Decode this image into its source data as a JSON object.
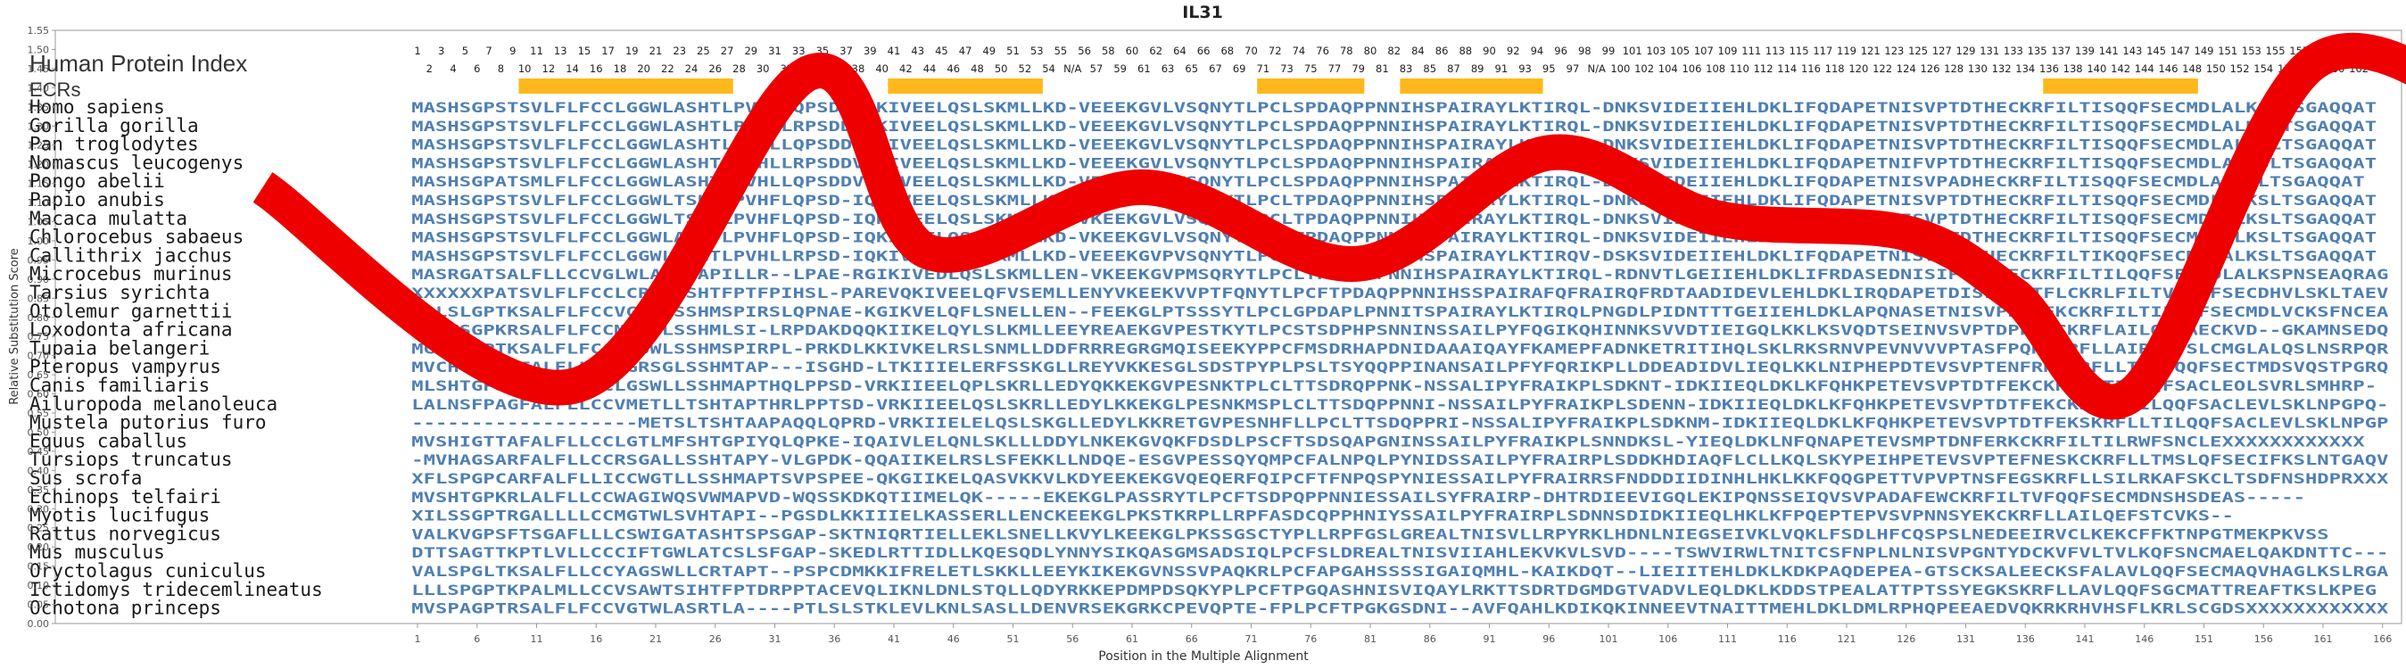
{
  "chart_data": {
    "type": "line",
    "title": "IL31",
    "xlabel": "Position in the Multiple Alignment",
    "ylabel": "Relative Substitution Score",
    "ylim": [
      0.0,
      1.55
    ],
    "y_ticks": [
      "0.00",
      "0.05",
      "0.10",
      "0.15",
      "0.20",
      "0.25",
      "0.30",
      "0.35",
      "0.40",
      "0.45",
      "0.50",
      "0.55",
      "0.60",
      "0.65",
      "0.70",
      "0.75",
      "0.80",
      "0.85",
      "0.90",
      "0.95",
      "1.00",
      "1.05",
      "1.10",
      "1.15",
      "1.20",
      "1.25",
      "1.30",
      "1.35",
      "1.40",
      "1.45",
      "1.50",
      "1.55"
    ],
    "xlim": [
      1,
      166
    ],
    "x_ticks": [
      "1",
      "6",
      "11",
      "16",
      "21",
      "26",
      "31",
      "36",
      "41",
      "46",
      "51",
      "56",
      "61",
      "66",
      "71",
      "76",
      "81",
      "86",
      "91",
      "96",
      "101",
      "106",
      "111",
      "116",
      "121",
      "126",
      "131",
      "136",
      "141",
      "146",
      "151",
      "156",
      "161",
      "166"
    ],
    "index_label": "Human Protein Index",
    "ecr_label": "ECRs",
    "human_index_row1": [
      "1",
      "3",
      "5",
      "7",
      "9",
      "11",
      "13",
      "15",
      "17",
      "19",
      "21",
      "23",
      "25",
      "27",
      "29",
      "31",
      "33",
      "35",
      "37",
      "39",
      "41",
      "43",
      "45",
      "47",
      "49",
      "51",
      "53",
      "55",
      "56",
      "58",
      "60",
      "62",
      "64",
      "66",
      "68",
      "70",
      "72",
      "74",
      "76",
      "78",
      "80",
      "82",
      "84",
      "86",
      "88",
      "90",
      "92",
      "94",
      "96",
      "98",
      "99",
      "101",
      "103",
      "105",
      "107",
      "109",
      "111",
      "113",
      "115",
      "117",
      "119",
      "121",
      "123",
      "125",
      "127",
      "129",
      "131",
      "133",
      "135",
      "137",
      "139",
      "141",
      "143",
      "145",
      "147",
      "149",
      "151",
      "153",
      "155",
      "157",
      "159",
      "161",
      "163"
    ],
    "human_index_row2": [
      "2",
      "4",
      "6",
      "8",
      "10",
      "12",
      "14",
      "16",
      "18",
      "20",
      "22",
      "24",
      "26",
      "28",
      "30",
      "32",
      "34",
      "36",
      "38",
      "40",
      "42",
      "44",
      "46",
      "48",
      "50",
      "52",
      "54",
      "N/A",
      "57",
      "59",
      "61",
      "63",
      "65",
      "67",
      "69",
      "71",
      "73",
      "75",
      "77",
      "79",
      "81",
      "83",
      "85",
      "87",
      "89",
      "91",
      "93",
      "95",
      "97",
      "N/A",
      "100",
      "102",
      "104",
      "106",
      "108",
      "110",
      "112",
      "114",
      "116",
      "118",
      "120",
      "122",
      "124",
      "126",
      "128",
      "130",
      "132",
      "134",
      "136",
      "138",
      "140",
      "142",
      "144",
      "146",
      "148",
      "150",
      "152",
      "154",
      "156",
      "158",
      "160",
      "162"
    ],
    "ecrs": [
      [
        10,
        27
      ],
      [
        41,
        53
      ],
      [
        72,
        80
      ],
      [
        84,
        95
      ],
      [
        138,
        150
      ]
    ],
    "species": [
      "Homo sapiens",
      "Gorilla gorilla",
      "Pan troglodytes",
      "Nomascus leucogenys",
      "Pongo abelii",
      "Papio anubis",
      "Macaca mulatta",
      "Chlorocebus sabaeus",
      "Callithrix jacchus",
      "Microcebus murinus",
      "Tarsius syrichta",
      "Otolemur garnettii",
      "Loxodonta africana",
      "Tupaia belangeri",
      "Pteropus vampyrus",
      "Canis familiaris",
      "Ailuropoda melanoleuca",
      "Mustela putorius furo",
      "Equus caballus",
      "Tursiops truncatus",
      "Sus scrofa",
      "Echinops telfairi",
      "Myotis lucifugus",
      "Rattus norvegicus",
      "Mus musculus",
      "Oryctolagus cuniculus",
      "Ictidomys tridecemlineatus",
      "Ochotona princeps"
    ],
    "sequences": [
      "MASHSGPSTSVLFLFCCLGGWLASHTLPVHLLQPSDDVQKIVEELQSLSKMLLKD-VEEEKGVLVSQNYTLPCLSPDAQPPNNIHSPAIRAYLKTIRQL-DNKSVIDEIIEHLDKLIFQDAPETNISVPTDTHECKRFILTISQQFSECMDLALKSLTSGAQQAT",
      "MASHSGPSTSVLFLFCCLGGWLASHTLPILLLRPSDDVQKIVEELQSLSKMLLKD-VEEEKGVLVSQNYTLPCLSPDAQPPNNIHSPAIRAYLKTIRQL-DNKSVIDEIIEHLDKLIFQDAPETNISVPTDTHECKRFILTISQQFSECMDLALKSLTSGAQQAT",
      "MASHSGPSTSVLFLFCCLGGWLASHTLPVHLLQPSDDVQKIVEELQSLSKMLLKD-VEEEKGVLVSQNYTLPCLSPDAQPPNNIHSPAIRAYLKTIRQL-DNKSVIDEIIEHLDKLIFQDAPETNISVPTDTHECKRFILTISQQFSECMDLALKSLTSGAQQAT",
      "MASHSGPSTSVLFLFCCLGGWLASHTLPVHLLRPSDDVQKIVEELQSLSKMLLKD-VEEEKGVLVSQNYTLPCLSPDAQPPNNIHSPAIRAYLKTIRQL-DNKSVIDEIIEHLDKLIFQDAPETNIFVPTDTHECKRFILTISQQFSECMDLALKSLTSGAQQAT",
      "MASHSGPATSMLFLFCCLGGWLASHTLPVHLLQPSDDVQKIVEELQSLSKMLLKD-VEEEKGVLVSQNYTLPCLSPDAQPPNNIHSPAIRAYLKTIRQL-DNKSVIDEIIEHLDKLIFQDAPETNISVPADHECKRFILTISQQFSECMDLALKSLTSGAQQAT",
      "MASHSGPSTSVLFLFCCLGGWLTSHTLPVHFLQPSD-IQKIVEELQSLSKMLLKD-VKEEKGVLVSQNYTLPCLTPDAQPPNNIHSPAIRAYLKTIRQL-DNKSVIDEIIEHLDKLIFQDAPETNISVPTDTHECKRFILTISQQFSECMDLALKSLTSGAQQAT",
      "MASHSGPSTSVLFLFCCLGGWLTSHTLPVHFLQPSD-IQKIVEELQSLSKMLLKD-VKEEKGVLVSQNYTLPCLTPDAQPPNNIHSPAIRAYLKTIRQL-DNKSVIDEIIEHLDKLIFQDAPETNISVPTDTHECKRFILTISQQFSECMDLALKSLTSGAQQAT",
      "MASHSGPSTSVLFLFCCLGGWLASHTLPVHFLQPSD-IQKIVEELQSLSKMLLKD-VKEEKGVLVSQNYTLPCLTPDAQPPNNIHSPAIRAYLKTIRQL-DNKSVIDEIIEHLDKLIFQDAPETNISVPTDTHECKRFILTISQQFSECMDLALKSLTSGAQQAT",
      "MASHSGPSTSVLFLFCCLGGWLASHTLPVHLLRPSD-IQKIVEELQSLSKMLLKD-VEEEKGVPVSQNYTLPCLSPDAQPPNSIHSPAIRAYLKTIRQV-DSKSVIDEIIEHLDKLIFQDAPETNISVPADTHECKRFILTIKQQFSECMDLALKSLTSGAQQAT",
      "MASRGATSALFLLCCVGLWLASHSAPILLR--LPAE-RGIKIVEDLQSLSKMLLEN-VKEEKGVPMSQRYTLPCLTPDAQPPNNIHSPAIRAYLKTIRQL-RDNVTLGEIIEHLDKLIFRDASEDNISIPTDTHECKRFILTILQQFSECLDLALKSPNSEAQRAG",
      "XXXXXXPATSVLFLFCCLCRSWLSHTFPTFPIHSL-PAREVQKIVEELQFVSEMLLENYVKEEKVVPTFQNYTLPCFTPDAQPPNNIHSSPAIRAFQFRAIRQFRDTAADIDEVLEHLDKLIRQDAPETDISLPTDTFLCKRLFILTVFQQFSECDHVLSKLTAEVGGI-",
      "AALSLGPTKSALFLFCCVGSWLSSHMSPIRSLQPNAE-KGIKVELQFLSNELLEN--FEEKGLPTSSSYTLPCLGPDAPLPNNITSPAIRAYLKTIRQLPNGDLPIDNTTTGEIIEHLDKLAPQNASETNISVPEAFEKCKRFILTILRQFSECMDLVCKSFNCEAQQAT",
      "MVSHSGPKRSALFLFCCMGNWLSSHMLSI-LRPDAKDQQKIIKELQYLSLKMLLEEYREAEKGVPESTKYTLPCSTSDPHPSNNINSSAILPYFQGIKQHINNKSVVDTIEIGQLKKLKSVQDTSEINVSVPTDPFEKCKRFLAILQQFAECKVD--GKAMNSEDQKAR",
      "MGSRTGPTKSALFLFCCLGSWLSSHMSPIRPL-PRKDLKKIVKELRSLSNMLLDDFRRREGRGMQISEEKYPPCFMSDRHAPDNIDAAAIQAYFKAMEPFADNKETRITIHQLSKLRKSRNVPEVNVVVPTASFPQKSKRFLLAIRQTFSLCMGLALQSLNSRPQRAA",
      "MVCHTGSARFALFLLCCLGRSGLSSHMTAP---ISGHD-LTKIIIELERFSSKGLLREYVKKESGLSDSTPYPLPSLTSYQQPPINANSAILPFYFQRIKPLLDDEADIDVLIEQLKKLNIPHEPDTEVSVPTENFRKCKRFLLTILCQQFSECTMDSVQSTPGRQRASC-",
      "MLSHTGPSRFALFLLCCLGSWLLSSHMAPTHQLPPSD-VRKIIEELQPLSKRLLEDYQKKEKGVPESNKTPLCLTTSDRQPPNK-NSSALIPYFRAIKPLSDKNT-IDKIIEQLDKLKFQHKPETEVSVPTDTFEKCKRFLLTILQQFSACLEOLSVRLSMHRP-",
      "LALNSFPAGFALFLLCCVMETLLTSHTAPTHRLPPTSD-VRKIIEELQSLSKRLLEDYLKKEKGLPESNKMSPLCLTTSDQPPNNI-NSSAILPYFRAIKPLSDENN-IDKIIEQLDKLKFQHKPETEVSVPTDTFEKCKRFLLTILQQFSACLEVLSKLNPGPQ--",
      "-------------------METSLTSHTAAPAQQLQPRD-VRKIIELELQSLSKGLLEDYLKKRETGVPESNHFLLPCLTTSDQPPRI-NSSALIPYFRAIKPLSDKNM-IDKIIEQLDKLKFQHKPETEVSVPTDTFEKSKRFLLTILQQFSACLEVLSKLNPGPQ--",
      "MVSHIGTTAFALFLLCCLGTLMFSHTGPIYQLQPKE-IQAIVLELQNLSKLLLDDYLNKEKGVQKFDSDLPSCFTSDSQAPGNINSSAILPYFRAIKPLSNNDKSL-YIEQLDKLNFQNAPETEVSMPTDNFERKCKRFILTILRWFSNCLEXXXXXXXXXXXX",
      "-MVHAGSARFALFLLCCRSGALLSSHTAPY-VLGPDK-QQAIIKELRSLSFEKKLLNDQE-ESGVPESSQYQMPCFALNPQLPYNIDSSAILPYFRAIRPLSDDKHDIAQFLCLLKQLSKYPEIHPETEVSVPTEFNESKCKRFLLTMSLQFSECIFKSLNTGAQVI--",
      "XFLSPGPCARFALFLLICCWGTLLSSHMAPTSVPSPEE-QKGIIKELQASVKKVLKDYEEKEKGVQEQERFQIPCFTFNPQSPYNIESSAILPYFRAIRRSFNDDDIIDINHLHKLKKFQQGPETTVPVPTNSFEGSKRFLLSILRKAFSKCLTSDFNSHDPRXXXXX",
      "MVSHTGPKRLALFLLCCWAGIWQSVWMAPVD-WQSSKDKQTIIMELQK-----EKEKGLPASSRYTLPCFTSDPQPPNNIESSAILSYFRAIRP-DHTRDIEEVIGQLEKIPQNSSEIQVSVPADAFEWCKRFILTVFQQFSECMDNSHSDEAS-----",
      "XILSSGPTRGALLLLCCMGTWLSVHTAPI--PGSDLKKIIIELKASSERLLENCKEEKGLPKSTKRPLLRPFASDCQPPHNIYSSAILPYFRAIRPLSDNNSDIDKIIEQLHKLKFPQEPTEPVSVPNNSYEKCKRFLLAILQEFSTCVKS--",
      "VALKVGPSFTSGAFLLLCSWIGATASHTSPSGAP-SKTNIQRTIELLEKLSNELLKVYLKEEKGLPKSSGSCTYPLLRPFGSLGREALTNISVLLRPYRKLHDNLNIEGSEIVKLVQKLFSDLHFCQSPSLNEDEEIRVCLKEKCFFKTNPGTMEKPKVSS",
      "DTTSAGTTKPTLVLLCCCIFTGWLATCSLSFGAP-SKEDLRTTIDLLKQESQDLYNNYSIKQASGMSADSIQLPCFSLDREALTNISVIIAHLEKVKVLSVD----TSWVIRWLTNITCSFNPLNLNISVPGNTYDCKVFVLTVLKQFSNCMAELQAKDNTTC---",
      "VALSPGLTKSALFLLCCYAGSWLLCRTAPT--PSPCDMKKIFRELETLSKKLLEEYKIKEKGVNSSVPAQKRLPCFAPGAHSSSSIGAIQMHL-KAIKDQT--LIEIITEHLDKLKDKPAQDEPEA-GTSCKSALEECKSFALAVLQQFSECMAQVHAGLKSLRGAIRCE",
      "LLLSPGPTKPALMLLCCVSAWTSIHTFPTDRPPTACEVQLIKNLDNLSTQLLQDYRKKEPDMPDSQKYPLPCFTPGQASHNISVIQAYLRKTTSDRTDGMDGTVADVLEQLDKLKDDSTPEALATTPTSSYEGKSKRFLLAVLQQFSGCMATTREAFTKSLKPEG",
      "MVSPAGPTRSALFLFCCVGTWLASRTLA----PTLSLSTKLEVLKNLSASLLDENVRSEKGRKCPEVQPTE-FPLPCFTPGKGSDNI--AVFQAHLKDIKQKINNEEVTNAITTMEHLDKLDMLRPHQPEEAEDVQKRKRHVHSFLKRLSCGDSXXXXXXXXXXXXXX"
    ]
  }
}
